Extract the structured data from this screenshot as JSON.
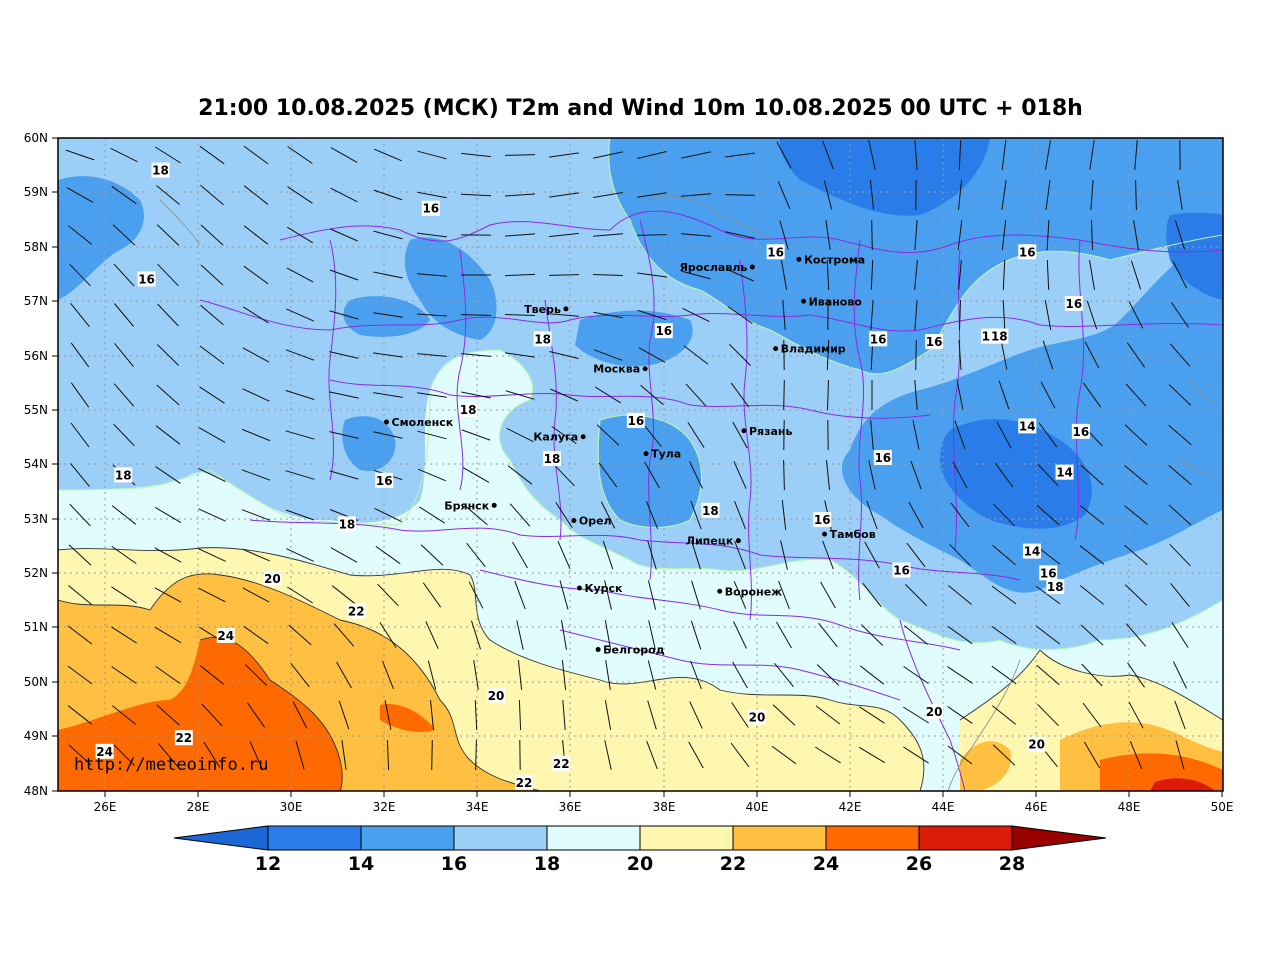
{
  "title": "21:00 10.08.2025 (МСК) T2m and Wind 10m 10.08.2025 00 UTC + 018h",
  "credit": "http://meteoinfo.ru",
  "lat_ticks": [
    "60N",
    "59N",
    "58N",
    "57N",
    "56N",
    "55N",
    "54N",
    "53N",
    "52N",
    "51N",
    "50N",
    "49N",
    "48N"
  ],
  "lon_ticks": [
    "26E",
    "28E",
    "30E",
    "32E",
    "34E",
    "36E",
    "38E",
    "40E",
    "42E",
    "44E",
    "46E",
    "48E",
    "50E"
  ],
  "cities": [
    {
      "name": "Ярославль",
      "lon": 39.9,
      "lat": 57.63,
      "side": "left"
    },
    {
      "name": "Кострома",
      "lon": 40.9,
      "lat": 57.77,
      "side": "right"
    },
    {
      "name": "Иваново",
      "lon": 41.0,
      "lat": 57.0,
      "side": "right"
    },
    {
      "name": "Тверь",
      "lon": 35.9,
      "lat": 56.86,
      "side": "left"
    },
    {
      "name": "Владимир",
      "lon": 40.4,
      "lat": 56.13,
      "side": "right"
    },
    {
      "name": "Москва",
      "lon": 37.6,
      "lat": 55.76,
      "side": "left"
    },
    {
      "name": "Смоленск",
      "lon": 32.05,
      "lat": 54.78,
      "side": "right"
    },
    {
      "name": "Калуга",
      "lon": 36.27,
      "lat": 54.51,
      "side": "left"
    },
    {
      "name": "Рязань",
      "lon": 39.72,
      "lat": 54.62,
      "side": "right"
    },
    {
      "name": "Тула",
      "lon": 37.62,
      "lat": 54.2,
      "side": "right"
    },
    {
      "name": "Брянск",
      "lon": 34.36,
      "lat": 53.25,
      "side": "left"
    },
    {
      "name": "Орел",
      "lon": 36.07,
      "lat": 52.97,
      "side": "right"
    },
    {
      "name": "Липецк",
      "lon": 39.6,
      "lat": 52.6,
      "side": "left"
    },
    {
      "name": "Тамбов",
      "lon": 41.45,
      "lat": 52.72,
      "side": "right"
    },
    {
      "name": "Курск",
      "lon": 36.19,
      "lat": 51.73,
      "side": "right"
    },
    {
      "name": "Воронеж",
      "lon": 39.2,
      "lat": 51.67,
      "side": "right"
    },
    {
      "name": "Белгород",
      "lon": 36.59,
      "lat": 50.6,
      "side": "right"
    }
  ],
  "contour_labels": [
    {
      "text": "18",
      "lon": 27.2,
      "lat": 59.4
    },
    {
      "text": "16",
      "lon": 33.0,
      "lat": 58.7
    },
    {
      "text": "16",
      "lon": 26.9,
      "lat": 57.4
    },
    {
      "text": "16",
      "lon": 40.4,
      "lat": 57.9
    },
    {
      "text": "16",
      "lon": 45.8,
      "lat": 57.9
    },
    {
      "text": "16",
      "lon": 46.8,
      "lat": 56.95
    },
    {
      "text": "16",
      "lon": 38.0,
      "lat": 56.45
    },
    {
      "text": "18",
      "lon": 35.4,
      "lat": 56.3
    },
    {
      "text": "16",
      "lon": 42.6,
      "lat": 56.3
    },
    {
      "text": "16",
      "lon": 43.8,
      "lat": 56.25
    },
    {
      "text": "16",
      "lon": 45.0,
      "lat": 56.35
    },
    {
      "text": "18",
      "lon": 45.2,
      "lat": 56.35
    },
    {
      "text": "18",
      "lon": 33.8,
      "lat": 55.0
    },
    {
      "text": "16",
      "lon": 37.4,
      "lat": 54.8
    },
    {
      "text": "14",
      "lon": 45.8,
      "lat": 54.7
    },
    {
      "text": "16",
      "lon": 46.95,
      "lat": 54.6
    },
    {
      "text": "18",
      "lon": 35.6,
      "lat": 54.1
    },
    {
      "text": "16",
      "lon": 42.7,
      "lat": 54.12
    },
    {
      "text": "14",
      "lon": 46.6,
      "lat": 53.85
    },
    {
      "text": "18",
      "lon": 26.4,
      "lat": 53.8
    },
    {
      "text": "16",
      "lon": 32.0,
      "lat": 53.7
    },
    {
      "text": "18",
      "lon": 39.0,
      "lat": 53.15
    },
    {
      "text": "16",
      "lon": 41.4,
      "lat": 52.98
    },
    {
      "text": "18",
      "lon": 31.2,
      "lat": 52.9
    },
    {
      "text": "14",
      "lon": 45.9,
      "lat": 52.4
    },
    {
      "text": "16",
      "lon": 46.25,
      "lat": 52.0
    },
    {
      "text": "16",
      "lon": 43.1,
      "lat": 52.05
    },
    {
      "text": "18",
      "lon": 46.4,
      "lat": 51.75
    },
    {
      "text": "20",
      "lon": 29.6,
      "lat": 51.9
    },
    {
      "text": "22",
      "lon": 31.4,
      "lat": 51.3
    },
    {
      "text": "24",
      "lon": 28.6,
      "lat": 50.85
    },
    {
      "text": "20",
      "lon": 34.4,
      "lat": 49.75
    },
    {
      "text": "20",
      "lon": 40.0,
      "lat": 49.35
    },
    {
      "text": "20",
      "lon": 43.8,
      "lat": 49.45
    },
    {
      "text": "20",
      "lon": 46.0,
      "lat": 48.85
    },
    {
      "text": "22",
      "lon": 27.7,
      "lat": 48.97
    },
    {
      "text": "24",
      "lon": 26.0,
      "lat": 48.72
    },
    {
      "text": "22",
      "lon": 35.8,
      "lat": 48.5
    },
    {
      "text": "22",
      "lon": 35.0,
      "lat": 48.15
    }
  ],
  "colorbar": {
    "ticks": [
      "12",
      "14",
      "16",
      "18",
      "20",
      "22",
      "24",
      "26",
      "28"
    ],
    "colors": [
      "#1c66d6",
      "#2a7de8",
      "#4aa0ee",
      "#9ccff7",
      "#e0fcfc",
      "#fff7b0",
      "#ffbf40",
      "#ff6a00",
      "#dc1a08",
      "#980000"
    ]
  }
}
